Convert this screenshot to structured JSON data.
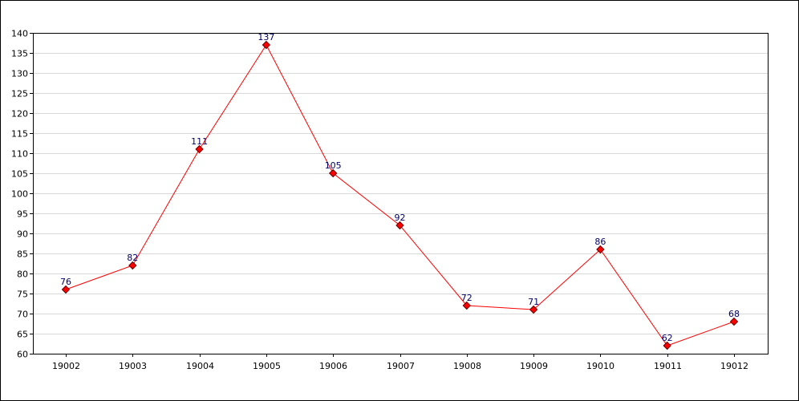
{
  "chart_data": {
    "type": "line",
    "categories": [
      "19002",
      "19003",
      "19004",
      "19005",
      "19006",
      "19007",
      "19008",
      "19009",
      "19010",
      "19011",
      "19012"
    ],
    "series": [
      {
        "values": [
          76,
          82,
          111,
          137,
          105,
          92,
          72,
          71,
          86,
          62,
          68
        ]
      }
    ],
    "ylim": [
      60,
      140
    ],
    "yticks": [
      60,
      65,
      70,
      75,
      80,
      85,
      90,
      95,
      100,
      105,
      110,
      115,
      120,
      125,
      130,
      135,
      140
    ],
    "grid": "horizontal",
    "data_labels": true,
    "line_color": "#ff0000",
    "marker_color": "#ff0000",
    "data_label_color": "#000066",
    "grid_color": "#d9d9d9"
  }
}
